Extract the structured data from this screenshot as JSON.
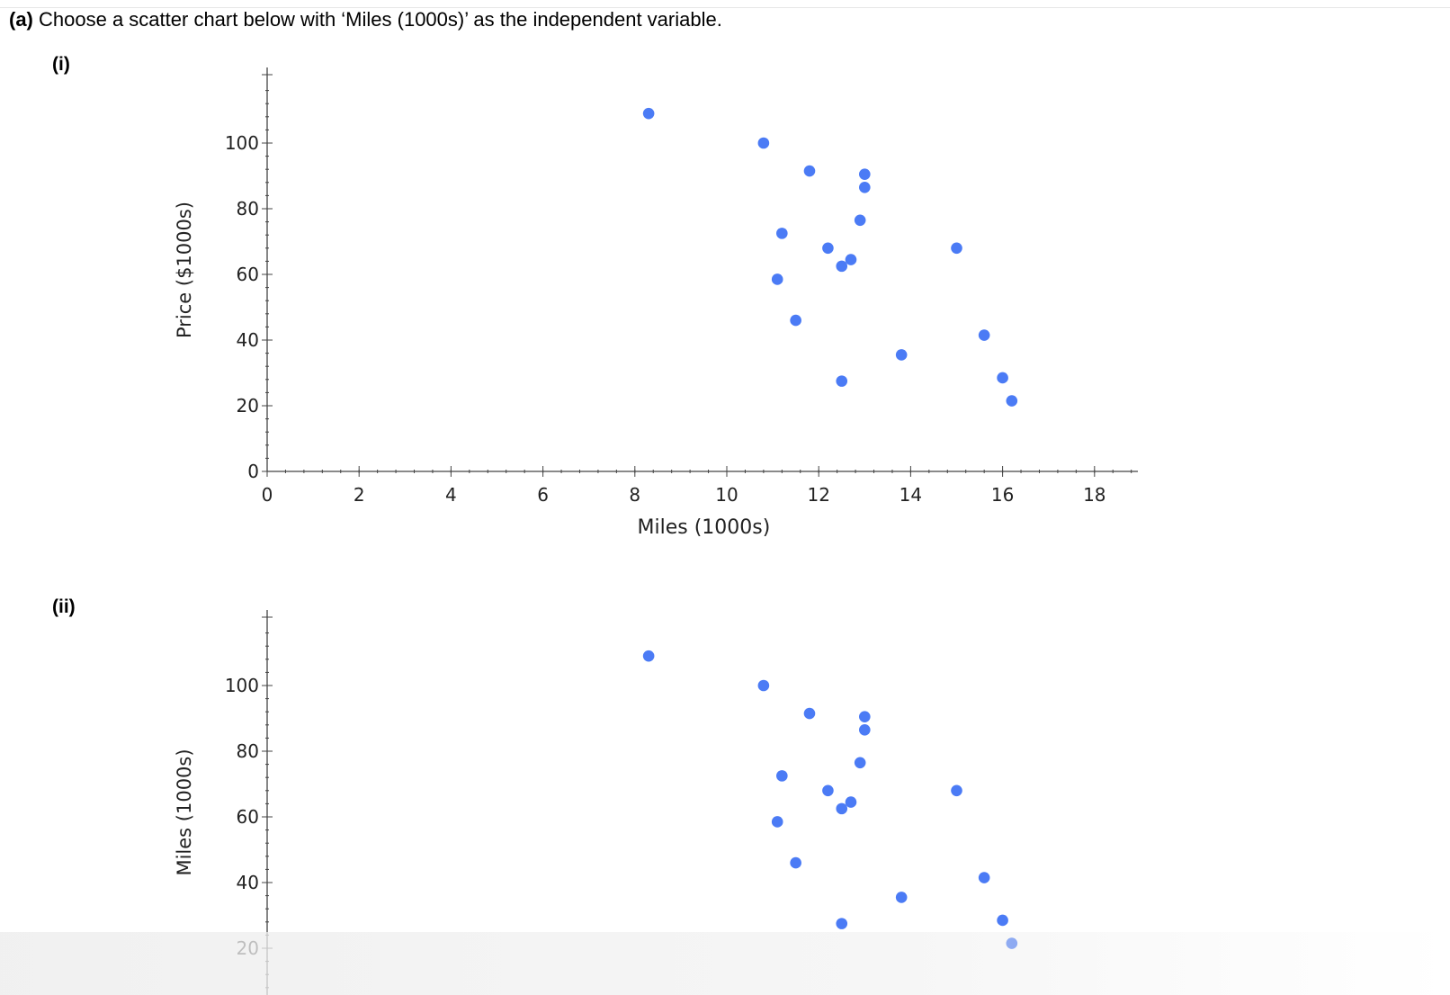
{
  "question": {
    "label": "(a)",
    "text": "Choose a scatter chart below with ‘Miles (1000s)’ as the independent variable."
  },
  "options": [
    {
      "label": "(i)"
    },
    {
      "label": "(ii)"
    }
  ],
  "chart_data": [
    {
      "type": "scatter",
      "xlabel": "Miles (1000s)",
      "ylabel": "Price ($1000s)",
      "xlim": [
        0,
        19
      ],
      "ylim": [
        0,
        120
      ],
      "x_ticks": [
        0,
        2,
        4,
        6,
        8,
        10,
        12,
        14,
        16,
        18
      ],
      "y_ticks": [
        0,
        20,
        40,
        60,
        80,
        100
      ],
      "grid": false,
      "marker_color": "#4b7bf5",
      "x": [
        8.3,
        10.8,
        11.8,
        13.0,
        13.0,
        12.9,
        11.2,
        12.2,
        12.7,
        12.5,
        11.1,
        11.5,
        15.0,
        15.6,
        13.8,
        12.5,
        16.0,
        16.2
      ],
      "y": [
        109,
        100,
        91.5,
        90.5,
        86.5,
        76.5,
        72.5,
        68,
        64.5,
        62.5,
        58.5,
        46,
        68,
        41.5,
        35.5,
        27.5,
        28.5,
        21.5
      ]
    },
    {
      "type": "scatter",
      "xlabel": "",
      "ylabel": "Miles (1000s)",
      "ylim": [
        0,
        120
      ],
      "y_ticks": [
        20,
        40,
        60,
        80,
        100
      ],
      "grid": false,
      "marker_color": "#4b7bf5",
      "x": [
        8.3,
        10.8,
        11.8,
        13.0,
        13.0,
        12.9,
        11.2,
        12.2,
        12.7,
        12.5,
        11.1,
        11.5,
        15.0,
        15.6,
        13.8,
        12.5,
        16.0,
        16.2
      ],
      "y": [
        109,
        100,
        91.5,
        90.5,
        86.5,
        76.5,
        72.5,
        68,
        64.5,
        62.5,
        58.5,
        46,
        68,
        41.5,
        35.5,
        27.5,
        28.5,
        21.5
      ]
    }
  ]
}
